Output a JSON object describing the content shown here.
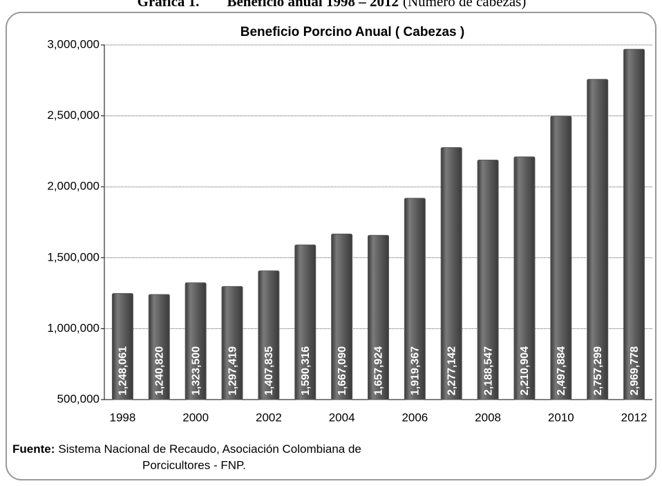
{
  "caption": {
    "number": "Gráfica 1.",
    "title": "Beneficio anual 1998 – 2012",
    "unit": "(Número de cabezas)"
  },
  "chart_data": {
    "type": "bar",
    "title": "Beneficio Porcino Anual ( Cabezas )",
    "categories": [
      "1998",
      null,
      "2000",
      null,
      "2002",
      null,
      "2004",
      null,
      "2006",
      null,
      "2008",
      null,
      "2010",
      null,
      "2012"
    ],
    "values": [
      1248061,
      1240820,
      1323500,
      1297419,
      1407835,
      1590316,
      1667090,
      1657924,
      1919367,
      2277142,
      2188547,
      2210904,
      2497884,
      2757299,
      2969778
    ],
    "value_labels": [
      "1,248,061",
      "1,240,820",
      "1,323,500",
      "1,297,419",
      "1,407,835",
      "1,590,316",
      "1,667,090",
      "1,657,924",
      "1,919,367",
      "2,277,142",
      "2,188,547",
      "2,210,904",
      "2,497,884",
      "2,757,299",
      "2,969,778"
    ],
    "color": "#595959",
    "ylim": [
      500000,
      3000000
    ],
    "yticks": [
      {
        "value": 500000,
        "label": "500,000"
      },
      {
        "value": 1000000,
        "label": "1,000,000"
      },
      {
        "value": 1500000,
        "label": "1,500,000"
      },
      {
        "value": 2000000,
        "label": "2,000,000"
      },
      {
        "value": 2500000,
        "label": "2,500,000"
      },
      {
        "value": 3000000,
        "label": "3,000,000"
      }
    ],
    "grid": true
  },
  "source": {
    "label": "Fuente:",
    "lines": [
      "Sistema Nacional de Recaudo, Asociación Colombiana de",
      "Porcicultores - FNP."
    ]
  }
}
